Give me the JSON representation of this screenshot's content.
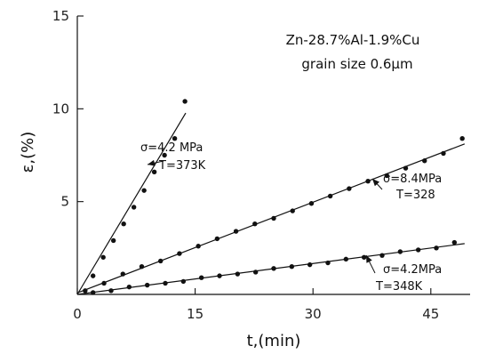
{
  "chart_data": {
    "type": "scatter",
    "title": "",
    "xlabel": "t,(min)",
    "ylabel": "ε,(%)",
    "xlim": [
      0,
      50
    ],
    "ylim": [
      0,
      15
    ],
    "xticks": [
      "0",
      "15",
      "30",
      "45"
    ],
    "yticks": [
      "5",
      "10",
      "15"
    ],
    "grid": false,
    "legend": "none",
    "header_lines": [
      "Zn-28.7%Al-1.9%Cu",
      "grain size 0.6μm"
    ],
    "series": [
      {
        "x": [
          2,
          3.3,
          4.6,
          5.9,
          7.2,
          8.5,
          9.8,
          11.1,
          12.4,
          13.7
        ],
        "y": [
          1.0,
          2.0,
          2.9,
          3.8,
          4.7,
          5.6,
          6.6,
          7.5,
          8.4,
          10.4
        ],
        "annotation": [
          "σ=4.2 MPa",
          "T=373K"
        ]
      },
      {
        "x": [
          1.0,
          3.4,
          5.8,
          8.2,
          10.6,
          13.0,
          15.4,
          17.8,
          20.2,
          22.6,
          25.0,
          27.4,
          29.8,
          32.2,
          34.6,
          37.0,
          39.4,
          41.8,
          44.2,
          46.6,
          49.0
        ],
        "y": [
          0.2,
          0.6,
          1.1,
          1.5,
          1.8,
          2.2,
          2.6,
          3.0,
          3.4,
          3.8,
          4.1,
          4.5,
          4.9,
          5.3,
          5.7,
          6.1,
          6.4,
          6.8,
          7.2,
          7.6,
          8.4
        ],
        "annotation": [
          "σ=8.4MPa",
          "T=328"
        ]
      },
      {
        "x": [
          2.0,
          4.3,
          6.6,
          8.9,
          11.2,
          13.5,
          15.8,
          18.1,
          20.4,
          22.7,
          25.0,
          27.3,
          29.6,
          31.9,
          34.2,
          36.5,
          38.8,
          41.1,
          43.4,
          45.7,
          48.0
        ],
        "y": [
          0.1,
          0.2,
          0.4,
          0.5,
          0.6,
          0.7,
          0.9,
          1.0,
          1.1,
          1.2,
          1.4,
          1.5,
          1.6,
          1.7,
          1.9,
          2.0,
          2.1,
          2.3,
          2.4,
          2.5,
          2.8
        ],
        "annotation": [
          "σ=4.2MPa",
          "T=348K"
        ]
      }
    ]
  }
}
